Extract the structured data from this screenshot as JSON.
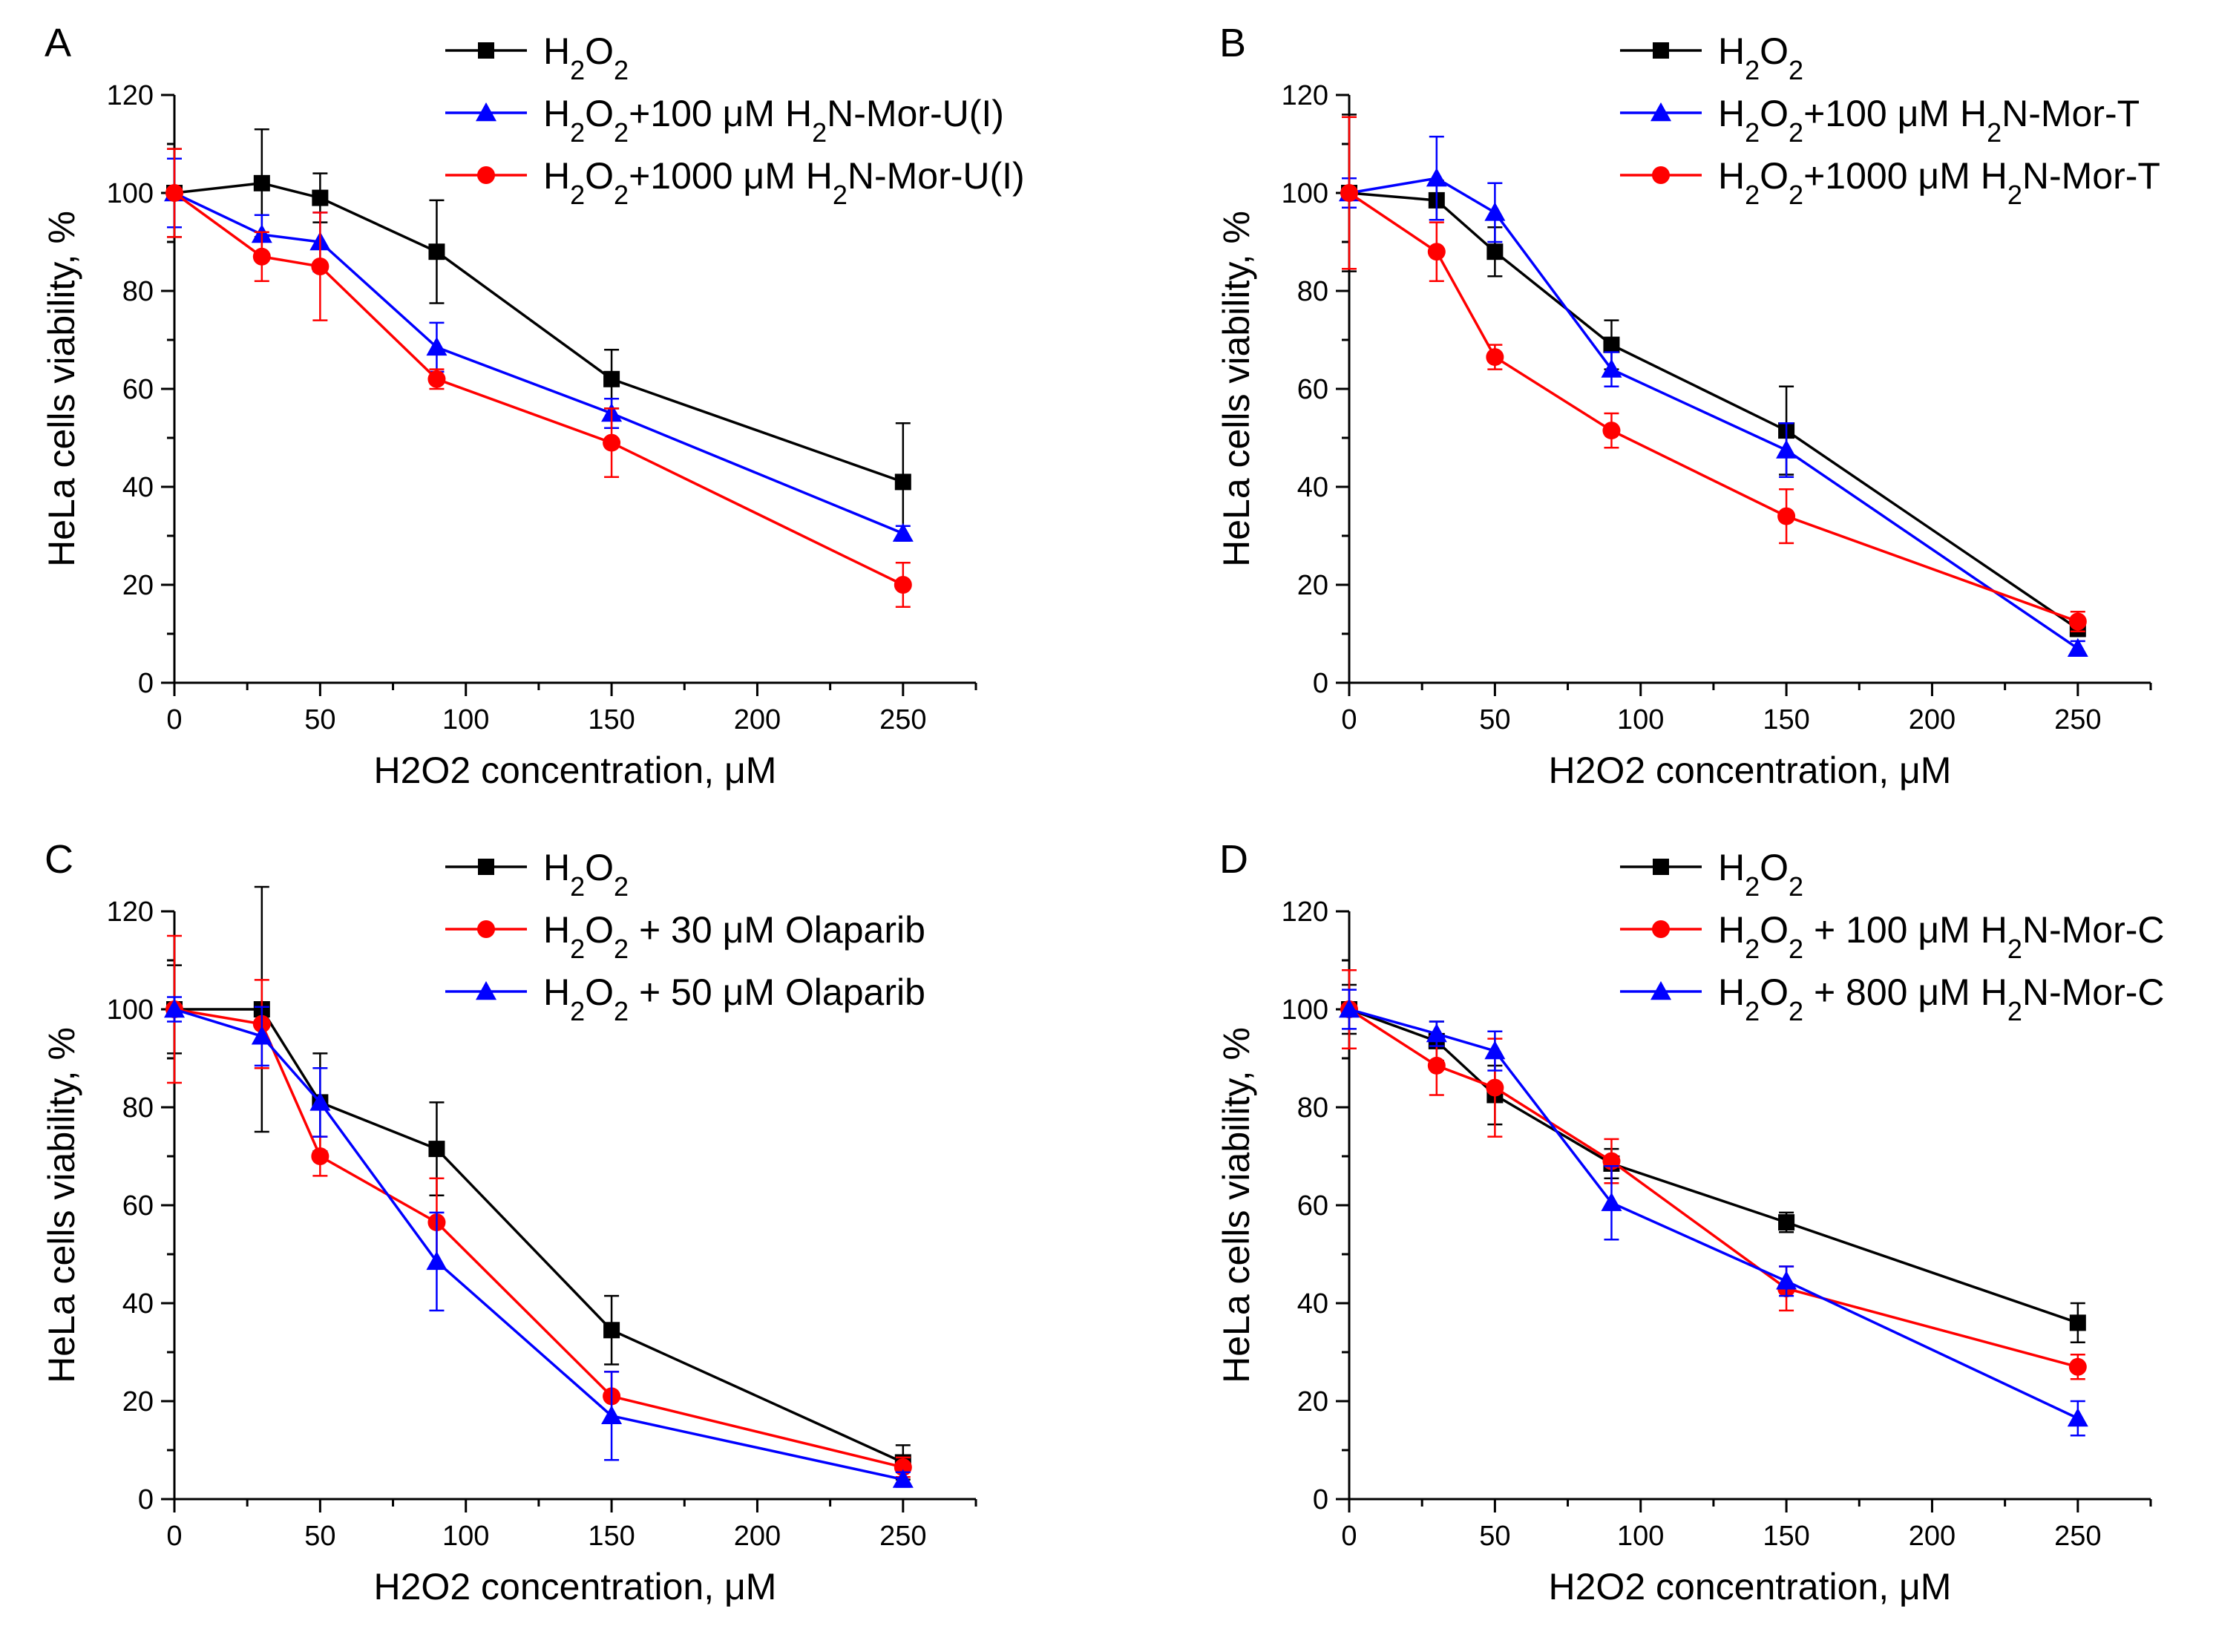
{
  "figure": {
    "background": "#ffffff"
  },
  "chart_data": [
    {
      "panel": "A",
      "type": "line",
      "xlabel": "H2O2 concentration, μM",
      "ylabel": "HeLa cells viability, %",
      "xlim": [
        0,
        275
      ],
      "ylim": [
        0,
        120
      ],
      "xticks": [
        0,
        50,
        100,
        150,
        200,
        250
      ],
      "yticks": [
        0,
        20,
        40,
        60,
        80,
        100,
        120
      ],
      "series": [
        {
          "name": "H2O2",
          "legend": [
            "H",
            "2",
            "O",
            "2"
          ],
          "color": "#000000",
          "marker": "square",
          "x": [
            0,
            30,
            50,
            90,
            150,
            250
          ],
          "y": [
            100,
            102,
            99,
            88,
            62,
            41
          ],
          "err": [
            9,
            11,
            5,
            10.5,
            6,
            12
          ]
        },
        {
          "name": "H2O2+100 μM H2N-Mor-U(I)",
          "legend": [
            "H",
            "2",
            "O",
            "2",
            "+100 μM H",
            "2",
            "N-Mor-U(I)"
          ],
          "color": "#0000ff",
          "marker": "triangle",
          "x": [
            0,
            30,
            50,
            90,
            150,
            250
          ],
          "y": [
            100,
            91.5,
            90,
            68.5,
            55,
            30.5
          ],
          "err": [
            7,
            4,
            6,
            5,
            3,
            1.5
          ]
        },
        {
          "name": "H2O2+1000 μM H2N-Mor-U(I)",
          "legend": [
            "H",
            "2",
            "O",
            "2",
            "+1000 μM H",
            "2",
            "N-Mor-U(I)"
          ],
          "color": "#ff0000",
          "marker": "circle",
          "x": [
            0,
            30,
            50,
            90,
            150,
            250
          ],
          "y": [
            100,
            87,
            85,
            62,
            49,
            20
          ],
          "err": [
            9,
            5,
            11,
            2,
            7,
            4.5
          ]
        }
      ]
    },
    {
      "panel": "B",
      "type": "line",
      "xlabel": "H2O2 concentration, μM",
      "ylabel": "HeLa cells viability, %",
      "xlim": [
        0,
        275
      ],
      "ylim": [
        0,
        120
      ],
      "xticks": [
        0,
        50,
        100,
        150,
        200,
        250
      ],
      "yticks": [
        0,
        20,
        40,
        60,
        80,
        100,
        120
      ],
      "series": [
        {
          "name": "H2O2",
          "legend": [
            "H",
            "2",
            "O",
            "2"
          ],
          "color": "#000000",
          "marker": "square",
          "x": [
            0,
            30,
            50,
            90,
            150,
            250
          ],
          "y": [
            100,
            98.5,
            88,
            69,
            51.5,
            11
          ],
          "err": [
            16,
            4,
            5,
            5,
            9,
            1.5
          ]
        },
        {
          "name": "H2O2+100 μM H2N-Mor-T",
          "legend": [
            "H",
            "2",
            "O",
            "2",
            "+100 μM H",
            "2",
            "N-Mor-T"
          ],
          "color": "#0000ff",
          "marker": "triangle",
          "x": [
            0,
            30,
            50,
            90,
            150,
            250
          ],
          "y": [
            100,
            103,
            96,
            64,
            47.5,
            7
          ],
          "err": [
            3,
            8.5,
            6,
            3.5,
            5.5,
            1.5
          ]
        },
        {
          "name": "H2O2+1000 μM H2N-Mor-T",
          "legend": [
            "H",
            "2",
            "O",
            "2",
            "+1000 μM H",
            "2",
            "N-Mor-T"
          ],
          "color": "#ff0000",
          "marker": "circle",
          "x": [
            0,
            30,
            50,
            90,
            150,
            250
          ],
          "y": [
            100,
            88,
            66.5,
            51.5,
            34,
            12.5
          ],
          "err": [
            15.5,
            6,
            2.5,
            3.5,
            5.5,
            2
          ]
        }
      ]
    },
    {
      "panel": "C",
      "type": "line",
      "xlabel": "H2O2 concentration, μM",
      "ylabel": "HeLa cells viability, %",
      "xlim": [
        0,
        275
      ],
      "ylim": [
        0,
        120
      ],
      "xticks": [
        0,
        50,
        100,
        150,
        200,
        250
      ],
      "yticks": [
        0,
        20,
        40,
        60,
        80,
        100,
        120
      ],
      "series": [
        {
          "name": "H2O2",
          "legend": [
            "H",
            "2",
            "O",
            "2"
          ],
          "color": "#000000",
          "marker": "square",
          "x": [
            0,
            30,
            50,
            90,
            150,
            250
          ],
          "y": [
            100,
            100,
            81,
            71.5,
            34.5,
            7.5
          ],
          "err": [
            9,
            25,
            10,
            9.5,
            7,
            3.5
          ]
        },
        {
          "name": "H2O2 + 30 μM Olaparib",
          "legend": [
            "H",
            "2",
            "O",
            "2",
            " + 30 μM Olaparib"
          ],
          "color": "#ff0000",
          "marker": "circle",
          "x": [
            0,
            30,
            50,
            90,
            150,
            250
          ],
          "y": [
            100,
            97,
            70,
            56.5,
            21,
            6.5
          ],
          "err": [
            15,
            9,
            4,
            9,
            5,
            2
          ]
        },
        {
          "name": "H2O2 + 50 μM Olaparib",
          "legend": [
            "H",
            "2",
            "O",
            "2",
            " + 50 μM Olaparib"
          ],
          "color": "#0000ff",
          "marker": "triangle",
          "x": [
            0,
            30,
            50,
            90,
            150,
            250
          ],
          "y": [
            100,
            94.5,
            81,
            48.5,
            17,
            4
          ],
          "err": [
            2.5,
            6,
            7,
            10,
            9,
            1.5
          ]
        }
      ]
    },
    {
      "panel": "D",
      "type": "line",
      "xlabel": "H2O2 concentration, μM",
      "ylabel": "HeLa cells viability, %",
      "xlim": [
        0,
        275
      ],
      "ylim": [
        0,
        120
      ],
      "xticks": [
        0,
        50,
        100,
        150,
        200,
        250
      ],
      "yticks": [
        0,
        20,
        40,
        60,
        80,
        100,
        120
      ],
      "series": [
        {
          "name": "H2O2",
          "legend": [
            "H",
            "2",
            "O",
            "2"
          ],
          "color": "#000000",
          "marker": "square",
          "x": [
            0,
            30,
            50,
            90,
            150,
            250
          ],
          "y": [
            100,
            93.5,
            82.5,
            68.5,
            56.5,
            36
          ],
          "err": [
            5,
            4,
            6,
            3,
            2,
            4
          ]
        },
        {
          "name": "H2O2 + 100 μM H2N-Mor-C",
          "legend": [
            "H",
            "2",
            "O",
            "2",
            " + 100 μM H",
            "2",
            "N-Mor-C"
          ],
          "color": "#ff0000",
          "marker": "circle",
          "x": [
            0,
            30,
            50,
            90,
            150,
            250
          ],
          "y": [
            100,
            88.5,
            84,
            69,
            43,
            27
          ],
          "err": [
            8,
            6,
            10,
            4.5,
            4.5,
            2.5
          ]
        },
        {
          "name": "H2O2 + 800 μM H2N-Mor-C",
          "legend": [
            "H",
            "2",
            "O",
            "2",
            " + 800 μM H",
            "2",
            "N-Mor-C"
          ],
          "color": "#0000ff",
          "marker": "triangle",
          "x": [
            0,
            30,
            50,
            90,
            150,
            250
          ],
          "y": [
            100,
            95,
            91.5,
            60.5,
            44.5,
            16.5
          ],
          "err": [
            4,
            2.5,
            4,
            7.5,
            3,
            3.5
          ]
        }
      ]
    }
  ]
}
